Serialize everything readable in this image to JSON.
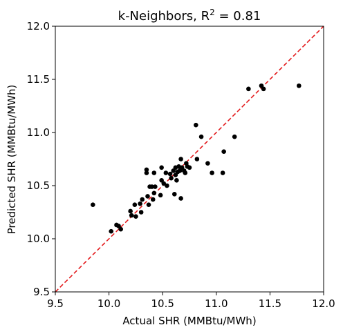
{
  "chart_data": {
    "type": "scatter",
    "title": "k-Neighbors, R",
    "title_superscript": "2",
    "title_suffix": " = 0.81",
    "xlabel": "Actual SHR (MMBtu/MWh)",
    "ylabel": "Predicted SHR (MMBtu/MWh)",
    "xlim": [
      9.5,
      12.0
    ],
    "ylim": [
      9.5,
      12.0
    ],
    "xticks": [
      9.5,
      10.0,
      10.5,
      11.0,
      11.5,
      12.0
    ],
    "yticks": [
      9.5,
      10.0,
      10.5,
      11.0,
      11.5,
      12.0
    ],
    "xtick_labels": [
      "9.5",
      "10.0",
      "10.5",
      "11.0",
      "11.5",
      "12.0"
    ],
    "ytick_labels": [
      "9.5",
      "10.0",
      "10.5",
      "11.0",
      "11.5",
      "12.0"
    ],
    "grid": false,
    "reference_line": {
      "from": [
        9.5,
        9.5
      ],
      "to": [
        12.0,
        12.0
      ],
      "color": "#e31a1c",
      "style": "dashed"
    },
    "marker_color": "#000000",
    "points": [
      [
        9.85,
        10.32
      ],
      [
        10.02,
        10.07
      ],
      [
        10.07,
        10.13
      ],
      [
        10.09,
        10.12
      ],
      [
        10.11,
        10.09
      ],
      [
        10.2,
        10.26
      ],
      [
        10.21,
        10.22
      ],
      [
        10.24,
        10.32
      ],
      [
        10.25,
        10.21
      ],
      [
        10.29,
        10.33
      ],
      [
        10.3,
        10.25
      ],
      [
        10.31,
        10.37
      ],
      [
        10.35,
        10.65
      ],
      [
        10.35,
        10.62
      ],
      [
        10.36,
        10.4
      ],
      [
        10.37,
        10.32
      ],
      [
        10.38,
        10.49
      ],
      [
        10.4,
        10.49
      ],
      [
        10.41,
        10.37
      ],
      [
        10.42,
        10.43
      ],
      [
        10.42,
        10.62
      ],
      [
        10.43,
        10.49
      ],
      [
        10.48,
        10.41
      ],
      [
        10.49,
        10.55
      ],
      [
        10.49,
        10.67
      ],
      [
        10.51,
        10.52
      ],
      [
        10.53,
        10.62
      ],
      [
        10.54,
        10.5
      ],
      [
        10.57,
        10.61
      ],
      [
        10.58,
        10.57
      ],
      [
        10.6,
        10.64
      ],
      [
        10.61,
        10.42
      ],
      [
        10.62,
        10.67
      ],
      [
        10.62,
        10.6
      ],
      [
        10.63,
        10.55
      ],
      [
        10.64,
        10.63
      ],
      [
        10.65,
        10.68
      ],
      [
        10.66,
        10.64
      ],
      [
        10.67,
        10.75
      ],
      [
        10.67,
        10.38
      ],
      [
        10.68,
        10.67
      ],
      [
        10.7,
        10.64
      ],
      [
        10.71,
        10.62
      ],
      [
        10.72,
        10.71
      ],
      [
        10.73,
        10.68
      ],
      [
        10.75,
        10.67
      ],
      [
        10.81,
        11.07
      ],
      [
        10.82,
        10.75
      ],
      [
        10.86,
        10.96
      ],
      [
        10.92,
        10.71
      ],
      [
        10.96,
        10.62
      ],
      [
        11.06,
        10.62
      ],
      [
        11.07,
        10.82
      ],
      [
        11.17,
        10.96
      ],
      [
        11.3,
        11.41
      ],
      [
        11.42,
        11.44
      ],
      [
        11.44,
        11.41
      ],
      [
        11.77,
        11.44
      ]
    ]
  }
}
